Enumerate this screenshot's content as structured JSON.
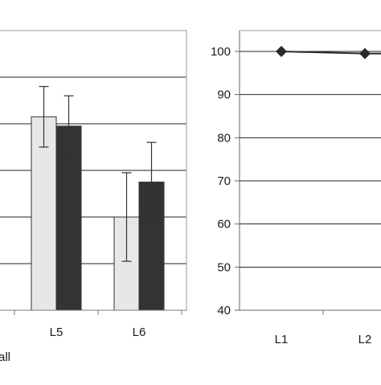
{
  "chart_data": [
    {
      "type": "bar",
      "categories": [
        "L5",
        "L6"
      ],
      "series": [
        {
          "values": [
            83,
            40
          ],
          "errors": [
            13,
            19
          ],
          "color": "#e6e8e6"
        },
        {
          "values": [
            79,
            55
          ],
          "errors": [
            13,
            17
          ],
          "color": "#333333"
        }
      ],
      "ylim": [
        0,
        120
      ],
      "ytick_values": [
        20,
        40,
        60,
        80,
        100,
        120
      ],
      "ytick_labels_visible": false,
      "grid": true,
      "legend_fragment": "all"
    },
    {
      "type": "line",
      "categories": [
        "L1",
        "L2"
      ],
      "series": [
        {
          "values": [
            100,
            99.5
          ],
          "marker": "diamond",
          "color": "#2a2a2a"
        }
      ],
      "ylim": [
        40,
        100
      ],
      "yticks": [
        "40",
        "50",
        "60",
        "70",
        "80",
        "90",
        "100"
      ],
      "grid": true
    }
  ]
}
